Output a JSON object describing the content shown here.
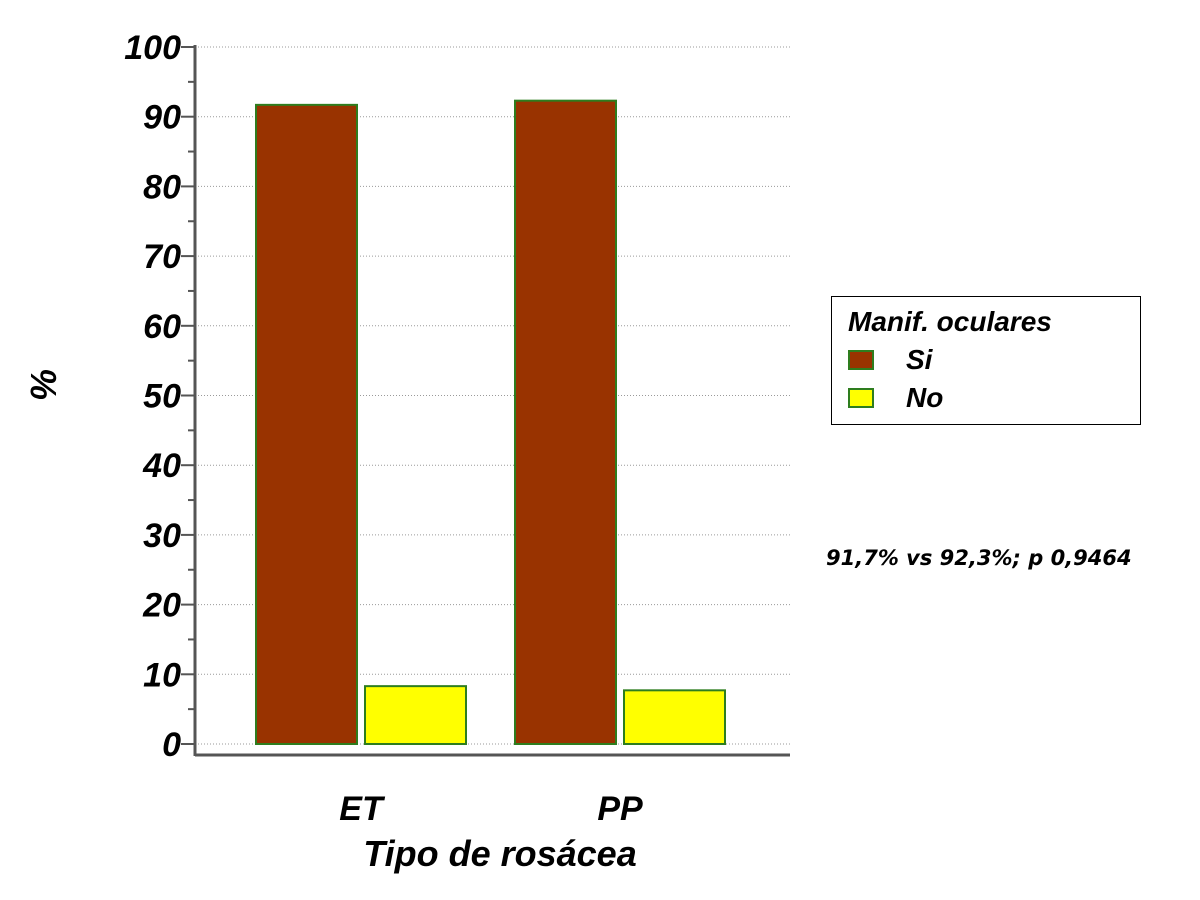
{
  "chart_data": {
    "type": "bar",
    "title": "",
    "xlabel": "Tipo de rosácea",
    "ylabel": "%",
    "categories": [
      "ET",
      "PP"
    ],
    "series": [
      {
        "name": "Si",
        "color": "#993300",
        "values": [
          91.7,
          92.3
        ]
      },
      {
        "name": "No",
        "color": "#ffff00",
        "values": [
          8.3,
          7.7
        ]
      }
    ],
    "bar_border_color": "#2e7d1e",
    "ylim": [
      0,
      100
    ],
    "yticks": [
      "0",
      "10",
      "20",
      "30",
      "40",
      "50",
      "60",
      "70",
      "80",
      "90",
      "100"
    ],
    "grid": "horizontal dotted",
    "legend": {
      "title": "Manif. oculares",
      "placement": "right"
    },
    "annotation": "91,7% vs 92,3%; p 0,9464"
  }
}
